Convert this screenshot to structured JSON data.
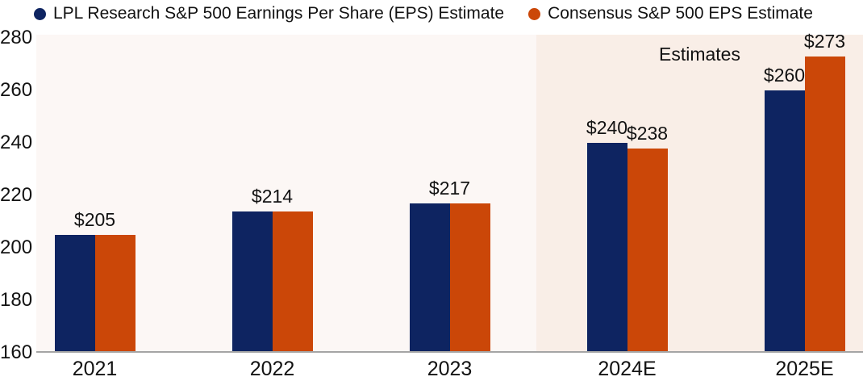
{
  "legend": {
    "items": [
      {
        "label": "LPL Research S&P 500 Earnings Per Share (EPS) Estimate",
        "color": "#0e2461"
      },
      {
        "label": "Consensus S&P 500 EPS Estimate",
        "color": "#cb4708"
      }
    ]
  },
  "colors": {
    "plot_bg": "#fcf7f5",
    "estimates_bg": "#f9eee7",
    "axis_line": "#a5a5a5",
    "text": "#121212",
    "navy": "#0e2461",
    "orange": "#cb4708"
  },
  "chart_data": {
    "type": "bar",
    "title": "",
    "categories": [
      "2021",
      "2022",
      "2023",
      "2024E",
      "2025E"
    ],
    "series": [
      {
        "name": "LPL Research S&P 500 Earnings Per Share (EPS) Estimate",
        "color": "#0e2461",
        "values": [
          205,
          214,
          217,
          240,
          260
        ]
      },
      {
        "name": "Consensus S&P 500 EPS Estimate",
        "color": "#cb4708",
        "values": [
          205,
          214,
          217,
          238,
          273
        ]
      }
    ],
    "point_labels": [
      {
        "category_index": 0,
        "anchor": "pair",
        "text": "$205",
        "value": 205
      },
      {
        "category_index": 1,
        "anchor": "pair",
        "text": "$214",
        "value": 214
      },
      {
        "category_index": 2,
        "anchor": "pair",
        "text": "$217",
        "value": 217
      },
      {
        "category_index": 3,
        "anchor": "series0",
        "text": "$240",
        "value": 240
      },
      {
        "category_index": 3,
        "anchor": "series1",
        "text": "$238",
        "value": 238
      },
      {
        "category_index": 4,
        "anchor": "series0",
        "text": "$260",
        "value": 260
      },
      {
        "category_index": 4,
        "anchor": "series1",
        "text": "$273",
        "value": 273
      }
    ],
    "ylim": [
      160,
      280
    ],
    "yticks": [
      160,
      180,
      200,
      220,
      240,
      260,
      280
    ],
    "annotation": "Estimates",
    "estimates_region_categories": [
      "2024E",
      "2025E"
    ],
    "grid": false,
    "legend_position": "top"
  }
}
